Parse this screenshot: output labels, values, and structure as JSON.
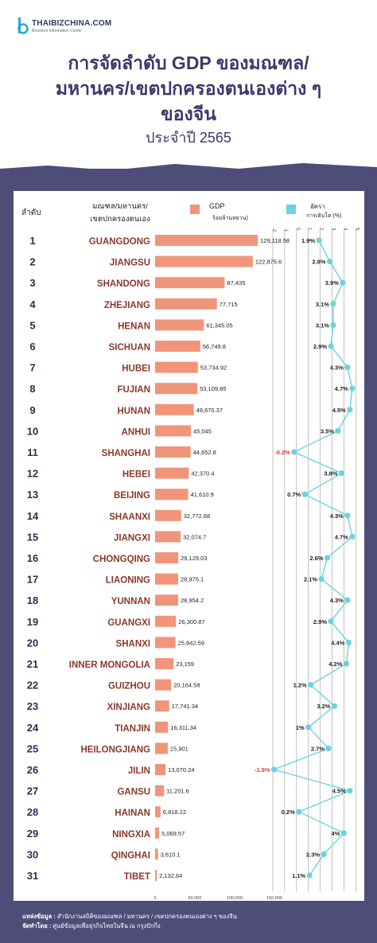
{
  "brand": {
    "name": "THAIBIZCHINA.COM",
    "tagline": "Business Information Center"
  },
  "header": {
    "title_line1": "การจัดลำดับ GDP ของมณฑล/",
    "title_line2": "มหานคร/เขตปกครองตนเองต่าง ๆ",
    "title_line3": "ของจีน",
    "year": "ประจำปี 2565"
  },
  "columns": {
    "rank": "ลำดับ",
    "region_line1": "มณฑล/มหานคร/",
    "region_line2": "เขตปกครองตนเอง",
    "gdp_line1": "GDP",
    "gdp_line2": "ร้อยล้านหยวน)",
    "growth_line1": "อัตรา",
    "growth_line2": "การเติบโต (%)"
  },
  "footer": {
    "source_label": "แหล่งข้อมูล :",
    "source_text": "สำนักงานสถิติของมณฑล / มหานคร / เขตปกครองตนเองต่าง ๆ ของจีน",
    "by_label": "จัดทำโดย :",
    "by_text": "ศูนย์ข้อมูลเพื่อธุรกิจไทยในจีน ณ กรุงปักกิ่ง"
  },
  "colors": {
    "background": "#4e4d79",
    "bar": "#f0957a",
    "line": "#6ad3e0",
    "region_text": "#8a3a2a",
    "title": "#3b3a6b"
  },
  "chart_data": {
    "type": "bar",
    "xlim_gdp": [
      0,
      150000
    ],
    "gdp_ticks": [
      "0",
      "50,000",
      "100,000",
      "150,000"
    ],
    "growth_ticks": [
      "-2",
      "-1",
      "0",
      "1",
      "2",
      "3",
      "4",
      "5"
    ],
    "xlim_growth": [
      -2,
      5
    ],
    "rows": [
      {
        "rank": "1",
        "region": "GUANGDONG",
        "gdp": 129118.58,
        "gdp_label": "129,118.58",
        "growth": 1.9,
        "growth_label": "1.9%"
      },
      {
        "rank": "2",
        "region": "JIANGSU",
        "gdp": 122875.6,
        "gdp_label": "122,875.6",
        "growth": 2.8,
        "growth_label": "2.8%"
      },
      {
        "rank": "3",
        "region": "SHANDONG",
        "gdp": 87435,
        "gdp_label": "87,435",
        "growth": 3.9,
        "growth_label": "3.9%"
      },
      {
        "rank": "4",
        "region": "ZHEJIANG",
        "gdp": 77715,
        "gdp_label": "77,715",
        "growth": 3.1,
        "growth_label": "3.1%"
      },
      {
        "rank": "5",
        "region": "HENAN",
        "gdp": 61345.05,
        "gdp_label": "61,345.05",
        "growth": 3.1,
        "growth_label": "3.1%"
      },
      {
        "rank": "6",
        "region": "SICHUAN",
        "gdp": 56749.8,
        "gdp_label": "56,749.8",
        "growth": 2.9,
        "growth_label": "2.9%"
      },
      {
        "rank": "7",
        "region": "HUBEI",
        "gdp": 53734.92,
        "gdp_label": "53,734.92",
        "growth": 4.3,
        "growth_label": "4.3%"
      },
      {
        "rank": "8",
        "region": "FUJIAN",
        "gdp": 53109.85,
        "gdp_label": "53,109.85",
        "growth": 4.7,
        "growth_label": "4.7%"
      },
      {
        "rank": "9",
        "region": "HUNAN",
        "gdp": 48670.37,
        "gdp_label": "48,670.37",
        "growth": 4.5,
        "growth_label": "4.5%"
      },
      {
        "rank": "10",
        "region": "ANHUI",
        "gdp": 45045,
        "gdp_label": "45,045",
        "growth": 3.5,
        "growth_label": "3.5%"
      },
      {
        "rank": "11",
        "region": "SHANGHAI",
        "gdp": 44652.8,
        "gdp_label": "44,652.8",
        "growth": -0.2,
        "growth_label": "-0.2%"
      },
      {
        "rank": "12",
        "region": "HEBEI",
        "gdp": 42370.4,
        "gdp_label": "42,370.4",
        "growth": 3.8,
        "growth_label": "3.8%"
      },
      {
        "rank": "13",
        "region": "BEIJING",
        "gdp": 41610.9,
        "gdp_label": "41,610.9",
        "growth": 0.7,
        "growth_label": "0.7%"
      },
      {
        "rank": "14",
        "region": "SHAANXI",
        "gdp": 32772.68,
        "gdp_label": "32,772.68",
        "growth": 4.3,
        "growth_label": "4.3%"
      },
      {
        "rank": "15",
        "region": "JIANGXI",
        "gdp": 32074.7,
        "gdp_label": "32,074.7",
        "growth": 4.7,
        "growth_label": "4.7%"
      },
      {
        "rank": "16",
        "region": "CHONGQING",
        "gdp": 29129.03,
        "gdp_label": "29,129.03",
        "growth": 2.6,
        "growth_label": "2.6%"
      },
      {
        "rank": "17",
        "region": "LIAONING",
        "gdp": 28975.1,
        "gdp_label": "28,975.1",
        "growth": 2.1,
        "growth_label": "2.1%"
      },
      {
        "rank": "18",
        "region": "YUNNAN",
        "gdp": 28954.2,
        "gdp_label": "28,954.2",
        "growth": 4.3,
        "growth_label": "4.3%"
      },
      {
        "rank": "19",
        "region": "GUANGXI",
        "gdp": 26300.87,
        "gdp_label": "26,300.87",
        "growth": 2.9,
        "growth_label": "2.9%"
      },
      {
        "rank": "20",
        "region": "SHANXI",
        "gdp": 25642.59,
        "gdp_label": "25,642.59",
        "growth": 4.4,
        "growth_label": "4.4%"
      },
      {
        "rank": "21",
        "region": "INNER MONGOLIA",
        "gdp": 23159,
        "gdp_label": "23,159",
        "growth": 4.2,
        "growth_label": "4.2%"
      },
      {
        "rank": "22",
        "region": "GUIZHOU",
        "gdp": 20164.58,
        "gdp_label": "20,164.58",
        "growth": 1.2,
        "growth_label": "1.2%"
      },
      {
        "rank": "23",
        "region": "XINJIANG",
        "gdp": 17741.34,
        "gdp_label": "17,741.34",
        "growth": 3.2,
        "growth_label": "3.2%"
      },
      {
        "rank": "24",
        "region": "TIANJIN",
        "gdp": 16311.34,
        "gdp_label": "16,311.34",
        "growth": 1,
        "growth_label": "1%"
      },
      {
        "rank": "25",
        "region": "HEILONGJIANG",
        "gdp": 15901,
        "gdp_label": "15,901",
        "growth": 2.7,
        "growth_label": "2.7%"
      },
      {
        "rank": "26",
        "region": "JILIN",
        "gdp": 13070.24,
        "gdp_label": "13,070.24",
        "growth": -1.9,
        "growth_label": "-1.9%"
      },
      {
        "rank": "27",
        "region": "GANSU",
        "gdp": 11201.6,
        "gdp_label": "11,201.6",
        "growth": 4.5,
        "growth_label": "4.5%"
      },
      {
        "rank": "28",
        "region": "HAINAN",
        "gdp": 6818.22,
        "gdp_label": "6,818.22",
        "growth": 0.2,
        "growth_label": "0.2%"
      },
      {
        "rank": "29",
        "region": "NINGXIA",
        "gdp": 5069.57,
        "gdp_label": "5,069.57",
        "growth": 4,
        "growth_label": "4%"
      },
      {
        "rank": "30",
        "region": "QINGHAI",
        "gdp": 3610.1,
        "gdp_label": "3,610.1",
        "growth": 2.3,
        "growth_label": "2.3%"
      },
      {
        "rank": "31",
        "region": "TIBET",
        "gdp": 2132.64,
        "gdp_label": "2,132.64",
        "growth": 1.1,
        "growth_label": "1.1%"
      }
    ]
  }
}
